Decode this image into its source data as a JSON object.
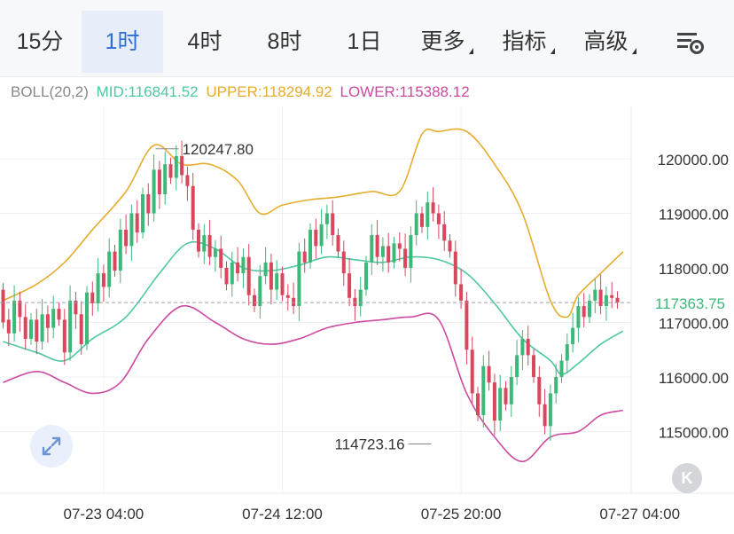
{
  "tabs": [
    {
      "label": "15分",
      "active": false,
      "dropdown": false
    },
    {
      "label": "1时",
      "active": true,
      "dropdown": false
    },
    {
      "label": "4时",
      "active": false,
      "dropdown": false
    },
    {
      "label": "8时",
      "active": false,
      "dropdown": false
    },
    {
      "label": "1日",
      "active": false,
      "dropdown": false
    },
    {
      "label": "更多",
      "active": false,
      "dropdown": true
    },
    {
      "label": "指标",
      "active": false,
      "dropdown": true
    },
    {
      "label": "高级",
      "active": false,
      "dropdown": true
    }
  ],
  "settings_icon": "chart-settings-icon",
  "indicator": {
    "name": "BOLL(20,2)",
    "mid_label": "MID:116841.52",
    "upper_label": "UPPER:118294.92",
    "lower_label": "LOWER:115388.12"
  },
  "colors": {
    "up": "#3cb878",
    "down": "#d9475d",
    "mid": "#4ec7a2",
    "upper": "#e6ac2e",
    "lower": "#cc4aa0",
    "active_tab": "#2b6fd6",
    "price_label": "#3cb878"
  },
  "chart_data": {
    "type": "candlestick",
    "ylim": [
      114000,
      121500
    ],
    "y_ticks": [
      {
        "value": 120000,
        "label": "120000.00"
      },
      {
        "value": 119000,
        "label": "119000.00"
      },
      {
        "value": 118000,
        "label": "118000.00"
      },
      {
        "value": 117000,
        "label": "117000.00"
      },
      {
        "value": 116000,
        "label": "116000.00"
      },
      {
        "value": 115000,
        "label": "115000.00"
      }
    ],
    "x_ticks": [
      {
        "index": 18,
        "label": "07-23 04:00"
      },
      {
        "index": 50,
        "label": "07-24 12:00"
      },
      {
        "index": 82,
        "label": "07-25 20:00"
      },
      {
        "index": 114,
        "label": "07-27 04:00"
      }
    ],
    "current_price": {
      "value": 117363.75,
      "label": "117363.75"
    },
    "high_annotation": {
      "value": 120247.8,
      "label": "120247.80",
      "index": 27
    },
    "low_annotation": {
      "value": 114723.16,
      "label": "114723.16",
      "index": 77
    },
    "candles": [
      [
        117600,
        117000
      ],
      [
        117050,
        116800
      ],
      [
        116800,
        117400
      ],
      [
        117400,
        117100
      ],
      [
        117100,
        116700
      ],
      [
        116700,
        117050
      ],
      [
        117050,
        116650
      ],
      [
        116650,
        117150
      ],
      [
        117150,
        116900
      ],
      [
        116900,
        117250
      ],
      [
        117250,
        117050
      ],
      [
        117050,
        116450
      ],
      [
        116450,
        117400
      ],
      [
        117400,
        117150
      ],
      [
        117150,
        116600
      ],
      [
        116600,
        117550
      ],
      [
        117550,
        117350
      ],
      [
        117350,
        117900
      ],
      [
        117900,
        117650
      ],
      [
        117650,
        118300
      ],
      [
        118300,
        117950
      ],
      [
        117950,
        118700
      ],
      [
        118700,
        118400
      ],
      [
        118400,
        119000
      ],
      [
        119000,
        118650
      ],
      [
        118650,
        119350
      ],
      [
        119350,
        119000
      ],
      [
        119000,
        119800
      ],
      [
        119800,
        119350
      ],
      [
        119350,
        119900
      ],
      [
        119900,
        119650
      ],
      [
        119650,
        120050
      ],
      [
        120050,
        119700
      ],
      [
        119700,
        119500
      ],
      [
        119500,
        118700
      ],
      [
        118700,
        118300
      ],
      [
        118300,
        118600
      ],
      [
        118600,
        118200
      ],
      [
        118200,
        118350
      ],
      [
        118350,
        118000
      ],
      [
        118000,
        117700
      ],
      [
        117700,
        118100
      ],
      [
        118100,
        117900
      ],
      [
        117900,
        118200
      ],
      [
        118200,
        117500
      ],
      [
        117500,
        117300
      ],
      [
        117300,
        117850
      ],
      [
        117850,
        118100
      ],
      [
        118100,
        117600
      ],
      [
        117600,
        117900
      ],
      [
        117900,
        117500
      ],
      [
        117500,
        117450
      ],
      [
        117450,
        117300
      ],
      [
        117300,
        118300
      ],
      [
        118300,
        118100
      ],
      [
        118100,
        118700
      ],
      [
        118700,
        118400
      ],
      [
        118400,
        118800
      ],
      [
        118800,
        119000
      ],
      [
        119000,
        118600
      ],
      [
        118600,
        118300
      ],
      [
        118300,
        117900
      ],
      [
        117900,
        117450
      ],
      [
        117450,
        117300
      ],
      [
        117300,
        117600
      ],
      [
        117600,
        118100
      ],
      [
        118100,
        118600
      ],
      [
        118600,
        118200
      ],
      [
        118200,
        118400
      ],
      [
        118400,
        118100
      ],
      [
        118100,
        118450
      ],
      [
        118450,
        118350
      ],
      [
        118350,
        118000
      ],
      [
        118000,
        118600
      ],
      [
        118600,
        119000
      ],
      [
        119000,
        118750
      ],
      [
        118750,
        119200
      ],
      [
        119200,
        119000
      ],
      [
        119000,
        118800
      ],
      [
        118800,
        118500
      ],
      [
        118500,
        118300
      ],
      [
        118300,
        117700
      ],
      [
        117700,
        117400
      ],
      [
        117400,
        116500
      ],
      [
        116500,
        115700
      ],
      [
        115700,
        115300
      ],
      [
        115300,
        116200
      ],
      [
        116200,
        115900
      ],
      [
        115900,
        115200
      ],
      [
        115200,
        115800
      ],
      [
        115800,
        115500
      ],
      [
        115500,
        116000
      ],
      [
        116000,
        116400
      ],
      [
        116400,
        116700
      ],
      [
        116700,
        116400
      ],
      [
        116400,
        116000
      ],
      [
        116000,
        115500
      ],
      [
        115500,
        115100
      ],
      [
        115100,
        115700
      ],
      [
        115700,
        116000
      ],
      [
        116000,
        116300
      ],
      [
        116300,
        116600
      ],
      [
        116600,
        116900
      ],
      [
        116900,
        117300
      ],
      [
        117300,
        117100
      ],
      [
        117100,
        117400
      ],
      [
        117400,
        117600
      ],
      [
        117600,
        117300
      ],
      [
        117300,
        117500
      ],
      [
        117500,
        117450
      ],
      [
        117450,
        117363.75
      ]
    ],
    "mid": [
      [
        0,
        116650
      ],
      [
        6,
        116450
      ],
      [
        11,
        116300
      ],
      [
        16,
        116700
      ],
      [
        22,
        117100
      ],
      [
        28,
        117900
      ],
      [
        33,
        118450
      ],
      [
        38,
        118350
      ],
      [
        43,
        118000
      ],
      [
        48,
        117950
      ],
      [
        53,
        118050
      ],
      [
        58,
        118200
      ],
      [
        63,
        118150
      ],
      [
        68,
        118100
      ],
      [
        73,
        118200
      ],
      [
        78,
        118150
      ],
      [
        83,
        117900
      ],
      [
        88,
        117350
      ],
      [
        93,
        116700
      ],
      [
        98,
        116300
      ],
      [
        100,
        116050
      ],
      [
        103,
        116250
      ],
      [
        107,
        116600
      ],
      [
        111,
        116841.52
      ]
    ],
    "upper": [
      [
        0,
        117400
      ],
      [
        6,
        117700
      ],
      [
        11,
        118100
      ],
      [
        16,
        118700
      ],
      [
        22,
        119400
      ],
      [
        27,
        120247.8
      ],
      [
        32,
        119900
      ],
      [
        37,
        119900
      ],
      [
        42,
        119600
      ],
      [
        46,
        119000
      ],
      [
        50,
        119150
      ],
      [
        55,
        119250
      ],
      [
        60,
        119300
      ],
      [
        66,
        119400
      ],
      [
        71,
        119400
      ],
      [
        75,
        120450
      ],
      [
        78,
        120500
      ],
      [
        83,
        120500
      ],
      [
        88,
        119900
      ],
      [
        93,
        119000
      ],
      [
        98,
        117400
      ],
      [
        101,
        117100
      ],
      [
        103,
        117500
      ],
      [
        107,
        117900
      ],
      [
        111,
        118294.92
      ]
    ],
    "lower": [
      [
        0,
        115900
      ],
      [
        6,
        116100
      ],
      [
        11,
        115900
      ],
      [
        16,
        115700
      ],
      [
        21,
        115900
      ],
      [
        26,
        116700
      ],
      [
        32,
        117300
      ],
      [
        38,
        117000
      ],
      [
        43,
        116700
      ],
      [
        48,
        116600
      ],
      [
        53,
        116700
      ],
      [
        58,
        116900
      ],
      [
        63,
        117000
      ],
      [
        68,
        117050
      ],
      [
        73,
        117100
      ],
      [
        78,
        117050
      ],
      [
        83,
        115700
      ],
      [
        88,
        114900
      ],
      [
        93,
        114450
      ],
      [
        98,
        114900
      ],
      [
        103,
        115000
      ],
      [
        107,
        115300
      ],
      [
        111,
        115388.12
      ]
    ]
  }
}
